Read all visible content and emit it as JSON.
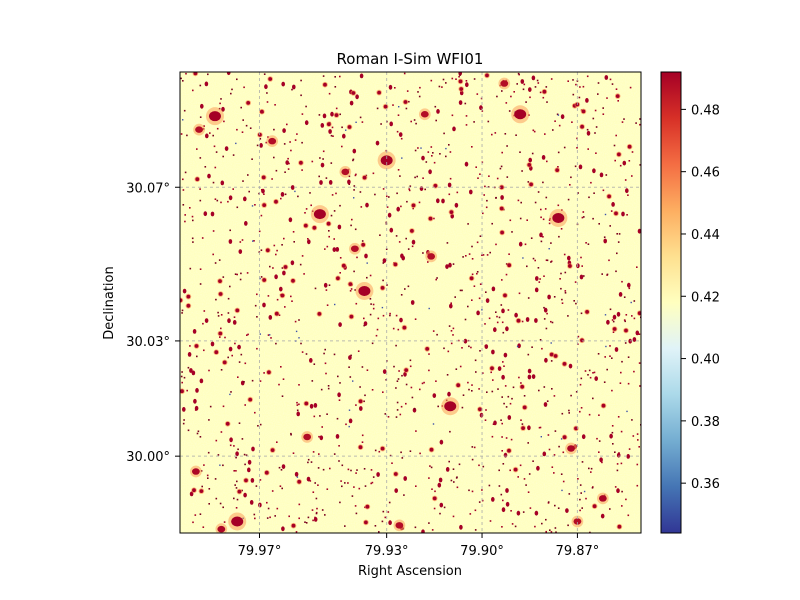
{
  "chart_data": {
    "type": "heatmap",
    "title": "Roman I-Sim WFI01",
    "xlabel": "Right Ascension",
    "ylabel": "Declination",
    "x_ticks": [
      {
        "value": 79.97,
        "label": "79.97°"
      },
      {
        "value": 79.93,
        "label": "79.93°"
      },
      {
        "value": 79.9,
        "label": "79.90°"
      },
      {
        "value": 79.87,
        "label": "79.87°"
      }
    ],
    "y_ticks": [
      {
        "value": 30.07,
        "label": "30.07°"
      },
      {
        "value": 30.03,
        "label": "30.03°"
      },
      {
        "value": 30.0,
        "label": "30.00°"
      }
    ],
    "xlim": [
      79.995,
      79.85
    ],
    "ylim": [
      29.98,
      30.1
    ],
    "grid": true,
    "grid_style": "dashed",
    "colormap": "RdYlBu_r",
    "colorbar": {
      "range": [
        0.344,
        0.492
      ],
      "ticks": [
        {
          "value": 0.36,
          "label": "0.36"
        },
        {
          "value": 0.38,
          "label": "0.38"
        },
        {
          "value": 0.4,
          "label": "0.40"
        },
        {
          "value": 0.42,
          "label": "0.42"
        },
        {
          "value": 0.44,
          "label": "0.44"
        },
        {
          "value": 0.46,
          "label": "0.46"
        },
        {
          "value": 0.48,
          "label": "0.48"
        }
      ]
    },
    "background_level": 0.418,
    "bright_sources": [
      {
        "ra": 79.984,
        "dec": 30.0885,
        "level": 0.492
      },
      {
        "ra": 79.951,
        "dec": 30.063,
        "level": 0.492
      },
      {
        "ra": 79.93,
        "dec": 30.077,
        "level": 0.492
      },
      {
        "ra": 79.888,
        "dec": 30.089,
        "level": 0.492
      },
      {
        "ra": 79.876,
        "dec": 30.062,
        "level": 0.492
      },
      {
        "ra": 79.937,
        "dec": 30.043,
        "level": 0.492
      },
      {
        "ra": 79.91,
        "dec": 30.013,
        "level": 0.492
      },
      {
        "ra": 79.977,
        "dec": 29.983,
        "level": 0.492
      },
      {
        "ra": 79.982,
        "dec": 29.981,
        "level": 0.49
      },
      {
        "ra": 79.99,
        "dec": 29.996,
        "level": 0.49
      },
      {
        "ra": 79.862,
        "dec": 29.989,
        "level": 0.49
      },
      {
        "ra": 79.872,
        "dec": 30.002,
        "level": 0.49
      },
      {
        "ra": 79.955,
        "dec": 30.005,
        "level": 0.488
      },
      {
        "ra": 79.918,
        "dec": 30.089,
        "level": 0.488
      },
      {
        "ra": 79.893,
        "dec": 30.097,
        "level": 0.488
      },
      {
        "ra": 79.943,
        "dec": 30.074,
        "level": 0.488
      },
      {
        "ra": 79.989,
        "dec": 30.085,
        "level": 0.488
      },
      {
        "ra": 79.966,
        "dec": 30.082,
        "level": 0.488
      },
      {
        "ra": 79.916,
        "dec": 30.052,
        "level": 0.488
      },
      {
        "ra": 79.94,
        "dec": 30.054,
        "level": 0.488
      },
      {
        "ra": 79.926,
        "dec": 29.982,
        "level": 0.488
      },
      {
        "ra": 79.87,
        "dec": 29.983,
        "level": 0.488
      }
    ]
  }
}
